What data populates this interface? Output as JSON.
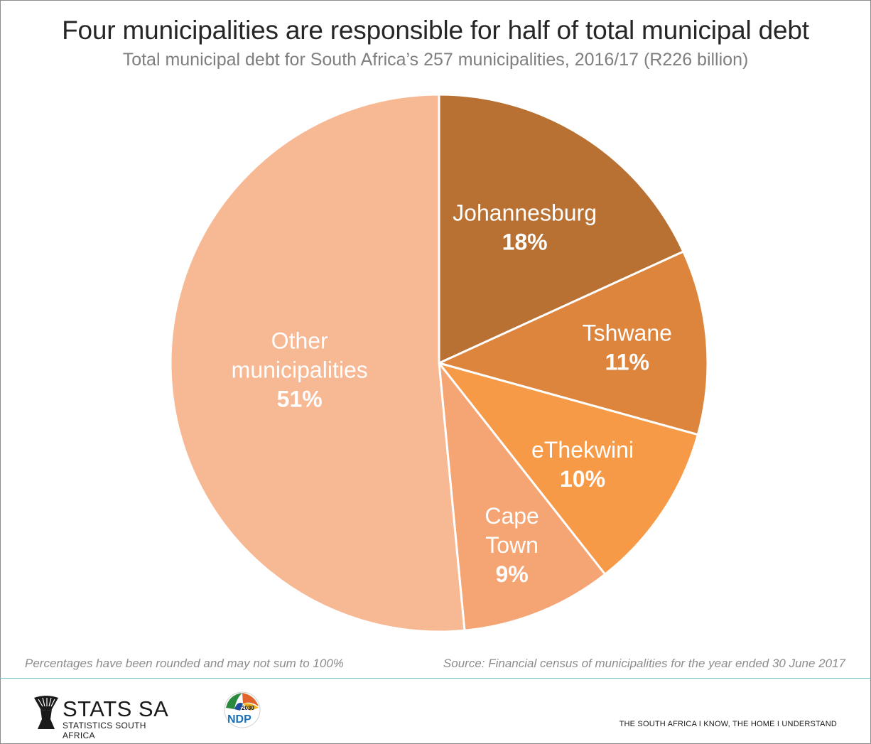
{
  "chart_data": {
    "type": "pie",
    "title": "Four municipalities are responsible for half of total municipal debt",
    "subtitle": "Total municipal debt for South Africa’s 257 municipalities, 2016/17 (R226 billion)",
    "slices": [
      {
        "label": "Johannesburg",
        "value": 18,
        "display": "18%",
        "color": "#b87033",
        "label_lines": [
          "Johannesburg"
        ]
      },
      {
        "label": "Tshwane",
        "value": 11,
        "display": "11%",
        "color": "#de853d",
        "label_lines": [
          "Tshwane"
        ]
      },
      {
        "label": "eThekwini",
        "value": 10,
        "display": "10%",
        "color": "#f79a47",
        "label_lines": [
          "eThekwini"
        ]
      },
      {
        "label": "Cape Town",
        "value": 9,
        "display": "9%",
        "color": "#f5a473",
        "label_lines": [
          "Cape",
          "Town"
        ]
      },
      {
        "label": "Other municipalities",
        "value": 51,
        "display": "51%",
        "color": "#f7b894",
        "label_lines": [
          "Other",
          "municipalities"
        ]
      }
    ],
    "label_color": "#ffffff",
    "slice_border_color": "#ffffff"
  },
  "footnote": "Percentages have been rounded and may not sum to 100%",
  "source": "Source: Financial census of municipalities for the year ended 30 June 2017",
  "branding": {
    "logo_name": "STATS SA",
    "logo_subtitle": "STATISTICS SOUTH AFRICA",
    "ndp_label": "NDP",
    "ndp_year": "2030",
    "tagline": "THE SOUTH AFRICA I KNOW, THE HOME I UNDERSTAND",
    "accent_line_color": "#7cc3c8"
  }
}
